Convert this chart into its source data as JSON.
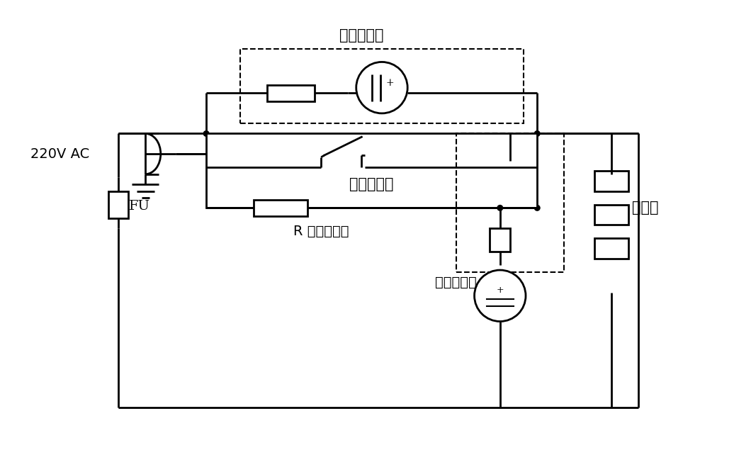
{
  "title": "",
  "bg_color": "#ffffff",
  "line_color": "#000000",
  "lw": 2.0,
  "font_size": 14,
  "labels": {
    "baowen_label": "保温指示灯",
    "cifan_label": "煮饭指示灯",
    "cigan_label": "磁钢限温器",
    "R_label": "R 保温电阻片",
    "FU_label": "FU",
    "AC_label": "220V AC",
    "repan_label": "电热盘"
  }
}
